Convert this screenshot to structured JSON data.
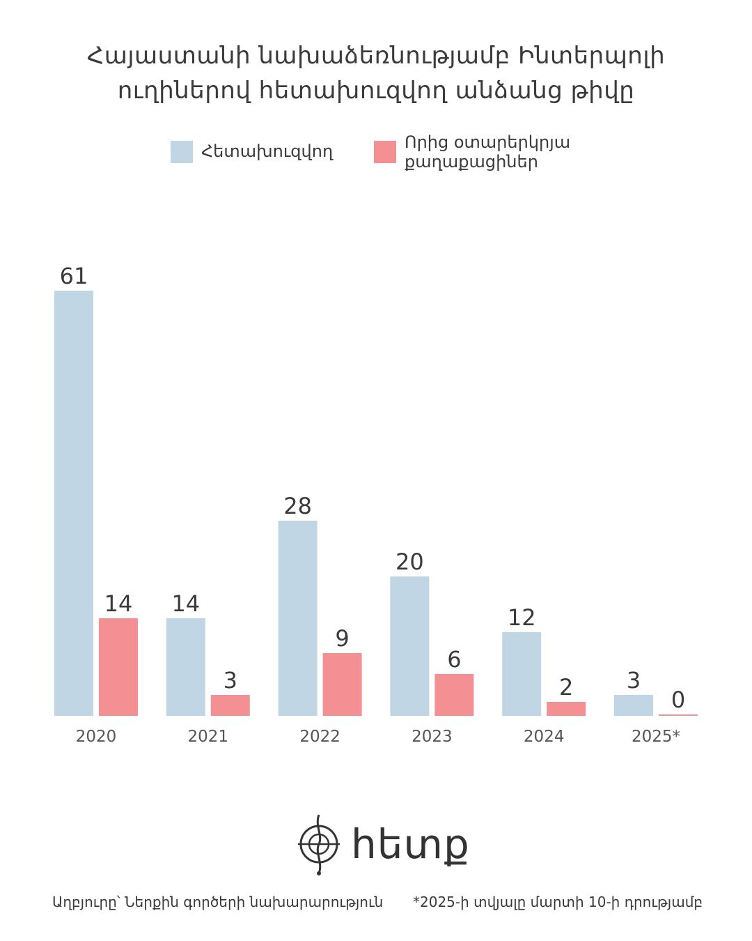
{
  "title_lines": [
    "Հայաստանի նախաձեռնությամբ Ինտերպոլի",
    "ուղիներով հետախուզվող անձանց թիվը"
  ],
  "legend": [
    {
      "label_lines": [
        "Հետախուզվող"
      ],
      "color": "#c0d6e5"
    },
    {
      "label_lines": [
        "Որից օտարերկրյա",
        "քաղաքացիներ"
      ],
      "color": "#f49094"
    }
  ],
  "chart_data": {
    "type": "bar",
    "categories": [
      "2020",
      "2021",
      "2022",
      "2023",
      "2024",
      "2025*"
    ],
    "series": [
      {
        "name": "Հետախուզվող",
        "values": [
          61,
          14,
          28,
          20,
          12,
          3
        ],
        "color": "#c0d6e5"
      },
      {
        "name": "Որից օտարերկրյա քաղաքացիներ",
        "values": [
          14,
          3,
          9,
          6,
          2,
          0
        ],
        "color": "#f49094"
      }
    ],
    "data_labels": true,
    "grid": false
  },
  "logo": {
    "word": "հետք"
  },
  "footer": {
    "source": "Աղբյուրը՝ Ներքին գործերի նախարարություն",
    "note": "*2025-ի տվյալը մարտի 10-ի դրությամբ"
  }
}
